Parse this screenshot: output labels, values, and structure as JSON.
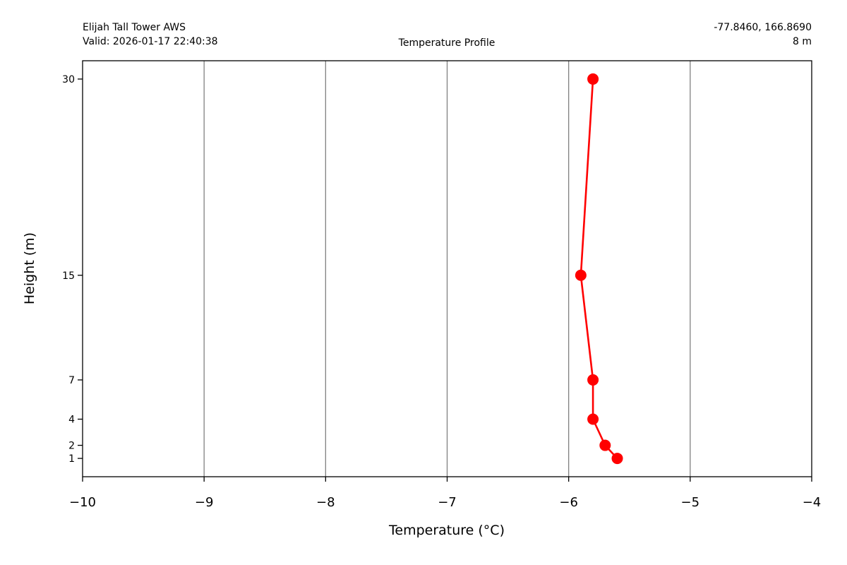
{
  "header": {
    "station": "Elijah Tall Tower AWS",
    "valid": "Valid: 2026-01-17 22:40:38",
    "coords": "-77.8460, 166.8690",
    "elevation": "8 m",
    "plot_title": "Temperature Profile"
  },
  "chart_data": {
    "type": "line",
    "title": "Temperature Profile",
    "xlabel": "Temperature (°C)",
    "ylabel": "Height (m)",
    "xlim": [
      -10,
      -4
    ],
    "ylim": [
      -0.4,
      31.4
    ],
    "x_ticks": [
      -10,
      -9,
      -8,
      -7,
      -6,
      -5,
      -4
    ],
    "x_tick_labels": [
      "−10",
      "−9",
      "−8",
      "−7",
      "−6",
      "−5",
      "−4"
    ],
    "y_ticks": [
      1,
      2,
      4,
      7,
      15,
      30
    ],
    "y_tick_labels": [
      "1",
      "2",
      "4",
      "7",
      "15",
      "30"
    ],
    "grid": "vertical",
    "series": [
      {
        "x": [
          -5.6,
          -5.7,
          -5.8,
          -5.8,
          -5.9,
          -5.8
        ],
        "y": [
          1,
          2,
          4,
          7,
          15,
          30
        ],
        "color": "#ff0000",
        "marker": "circle"
      }
    ]
  }
}
